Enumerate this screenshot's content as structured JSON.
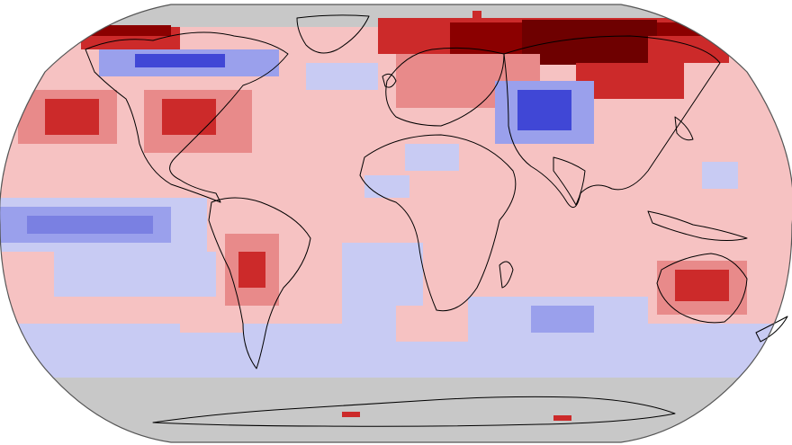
{
  "map": {
    "projection": "robinson",
    "colors": {
      "ocean_no_data": "#c8c8c8",
      "strong_warm": "#8b0000",
      "warm": "#cc2a2a",
      "moderate_warm": "#e88a8a",
      "light_warm": "#f6c2c2",
      "light_cool": "#c8cbf3",
      "cool": "#9aa0ec",
      "strong_cool": "#4047d6",
      "coastline": "#000000",
      "frame": "#555555"
    }
  }
}
